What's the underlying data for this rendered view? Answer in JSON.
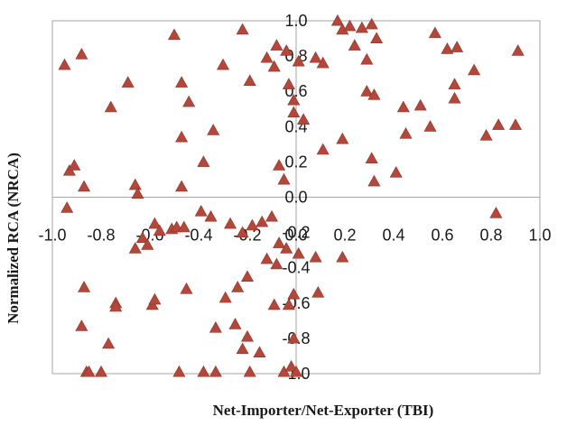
{
  "chart_data": {
    "type": "scatter",
    "title": "",
    "xlabel": "Net-Importer/Net-Exporter (TBI)",
    "ylabel": "Normalized RCA  (NRCA)",
    "xlim": [
      -1.0,
      1.0
    ],
    "ylim": [
      -1.0,
      1.0
    ],
    "x_ticks": [
      "-1.0",
      "-0.8",
      "-0.6",
      "-0.4",
      "-0.2",
      "0.0",
      "0.2",
      "0.4",
      "0.6",
      "0.8",
      "1.0"
    ],
    "y_ticks": [
      "1.0",
      "0.8",
      "0.6",
      "0.4",
      "0.2",
      "0.0",
      "-0.2",
      "-0.4",
      "-0.6",
      "-0.8",
      "-1.0"
    ],
    "grid": false,
    "legend": "none",
    "marker": "triangle",
    "marker_color": "#b2473a",
    "axis_color": "#a6a6a6",
    "points": [
      [
        -0.95,
        0.75
      ],
      [
        -0.88,
        0.81
      ],
      [
        -0.69,
        0.65
      ],
      [
        -0.66,
        0.07
      ],
      [
        -0.65,
        0.02
      ],
      [
        -0.76,
        0.51
      ],
      [
        -0.5,
        0.92
      ],
      [
        -0.47,
        0.65
      ],
      [
        -0.44,
        0.54
      ],
      [
        -0.47,
        0.34
      ],
      [
        -0.34,
        0.38
      ],
      [
        -0.38,
        0.2
      ],
      [
        -0.47,
        0.06
      ],
      [
        -0.3,
        0.75
      ],
      [
        -0.22,
        0.95
      ],
      [
        -0.19,
        0.66
      ],
      [
        -0.12,
        0.79
      ],
      [
        -0.09,
        0.74
      ],
      [
        -0.08,
        0.86
      ],
      [
        -0.04,
        0.83
      ],
      [
        -0.03,
        0.64
      ],
      [
        -0.01,
        0.55
      ],
      [
        -0.01,
        0.48
      ],
      [
        0.01,
        0.77
      ],
      [
        0.03,
        0.44
      ],
      [
        0.08,
        0.79
      ],
      [
        0.11,
        0.76
      ],
      [
        0.17,
        1.0
      ],
      [
        0.19,
        0.95
      ],
      [
        0.22,
        0.97
      ],
      [
        0.24,
        0.86
      ],
      [
        0.27,
        0.96
      ],
      [
        0.29,
        0.78
      ],
      [
        0.31,
        0.98
      ],
      [
        0.33,
        0.9
      ],
      [
        0.29,
        0.6
      ],
      [
        0.32,
        0.58
      ],
      [
        0.44,
        0.51
      ],
      [
        0.51,
        0.52
      ],
      [
        0.57,
        0.93
      ],
      [
        0.62,
        0.84
      ],
      [
        0.66,
        0.85
      ],
      [
        0.73,
        0.72
      ],
      [
        0.65,
        0.64
      ],
      [
        0.65,
        0.56
      ],
      [
        0.45,
        0.36
      ],
      [
        0.55,
        0.4
      ],
      [
        0.78,
        0.35
      ],
      [
        0.83,
        0.41
      ],
      [
        0.9,
        0.41
      ],
      [
        0.91,
        0.83
      ],
      [
        0.19,
        0.33
      ],
      [
        0.11,
        0.27
      ],
      [
        0.31,
        0.22
      ],
      [
        0.41,
        0.14
      ],
      [
        0.32,
        0.09
      ],
      [
        -0.07,
        0.18
      ],
      [
        -0.05,
        0.1
      ],
      [
        -0.93,
        0.15
      ],
      [
        -0.91,
        0.18
      ],
      [
        -0.87,
        0.06
      ],
      [
        -0.94,
        -0.06
      ],
      [
        0.82,
        -0.09
      ],
      [
        -0.39,
        -0.08
      ],
      [
        -0.35,
        -0.11
      ],
      [
        -0.58,
        -0.15
      ],
      [
        -0.56,
        -0.19
      ],
      [
        -0.51,
        -0.18
      ],
      [
        -0.49,
        -0.17
      ],
      [
        -0.46,
        -0.17
      ],
      [
        -0.63,
        -0.23
      ],
      [
        -0.61,
        -0.27
      ],
      [
        -0.66,
        -0.29
      ],
      [
        -0.27,
        -0.15
      ],
      [
        -0.22,
        -0.2
      ],
      [
        -0.18,
        -0.16
      ],
      [
        -0.14,
        -0.14
      ],
      [
        -0.1,
        -0.11
      ],
      [
        -0.07,
        -0.26
      ],
      [
        -0.04,
        -0.29
      ],
      [
        0.01,
        -0.32
      ],
      [
        -0.12,
        -0.35
      ],
      [
        -0.08,
        -0.38
      ],
      [
        0.08,
        -0.34
      ],
      [
        0.19,
        -0.34
      ],
      [
        -0.2,
        -0.45
      ],
      [
        -0.24,
        -0.51
      ],
      [
        -0.29,
        -0.57
      ],
      [
        -0.25,
        -0.72
      ],
      [
        -0.33,
        -0.74
      ],
      [
        -0.01,
        -0.55
      ],
      [
        0.09,
        -0.54
      ],
      [
        -0.87,
        -0.51
      ],
      [
        -0.88,
        -0.73
      ],
      [
        -0.74,
        -0.6
      ],
      [
        -0.74,
        -0.62
      ],
      [
        -0.59,
        -0.61
      ],
      [
        -0.58,
        -0.58
      ],
      [
        -0.45,
        -0.52
      ],
      [
        -0.09,
        -0.61
      ],
      [
        -0.03,
        -0.61
      ],
      [
        -0.77,
        -0.83
      ],
      [
        -0.22,
        -0.86
      ],
      [
        -0.2,
        -0.79
      ],
      [
        -0.15,
        -0.88
      ],
      [
        -0.01,
        -0.8
      ],
      [
        -0.86,
        -0.99
      ],
      [
        -0.85,
        -0.99
      ],
      [
        -0.8,
        -0.99
      ],
      [
        -0.48,
        -0.99
      ],
      [
        -0.38,
        -0.99
      ],
      [
        -0.33,
        -0.99
      ],
      [
        -0.19,
        -0.99
      ],
      [
        -0.05,
        -0.99
      ],
      [
        -0.02,
        -0.96
      ],
      [
        0.0,
        -0.99
      ]
    ]
  }
}
